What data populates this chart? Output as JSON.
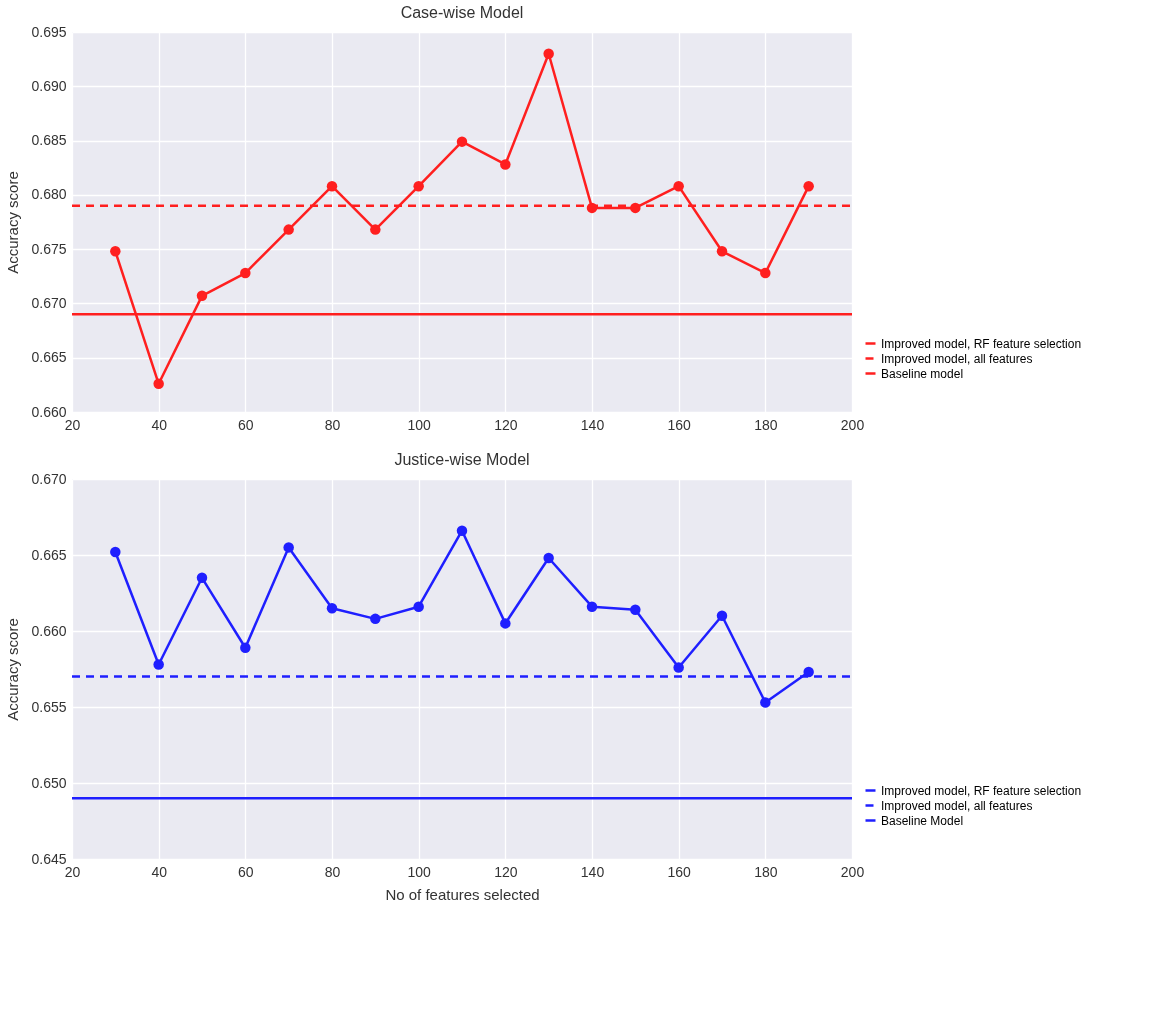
{
  "chart_data": [
    {
      "type": "line",
      "title": "Case-wise Model",
      "ylabel": "Accuracy score",
      "xlim": [
        20,
        200
      ],
      "xticks": [
        20,
        40,
        60,
        80,
        100,
        120,
        140,
        160,
        180,
        200
      ],
      "ylim": [
        0.66,
        0.695
      ],
      "yticks": [
        {
          "value": 0.66,
          "label": "0.660"
        },
        0.665,
        {
          "value": 0.67,
          "label": "0.670"
        },
        0.675,
        {
          "value": 0.68,
          "label": "0.680"
        },
        0.685,
        {
          "value": 0.69,
          "label": "0.690"
        },
        0.695
      ],
      "grid": true,
      "legend": "bottom right",
      "series": [
        {
          "name": "Improved model, RF feature selection",
          "color": "#ff1f1f",
          "marker": "circle",
          "line_style": "solid",
          "x": [
            30,
            40,
            50,
            60,
            70,
            80,
            90,
            100,
            110,
            120,
            130,
            140,
            150,
            160,
            170,
            180,
            190
          ],
          "values": [
            0.6748,
            0.6626,
            0.6707,
            0.6728,
            0.6768,
            0.6808,
            0.6768,
            0.6808,
            0.6849,
            0.6828,
            0.693,
            0.6788,
            0.6788,
            0.6808,
            0.6748,
            0.6728,
            0.6808
          ]
        },
        {
          "name": "Improved model, all features",
          "color": "#ff1f1f",
          "marker": "none",
          "line_style": "dashed",
          "x": [
            20,
            200
          ],
          "values": [
            0.679,
            0.679
          ]
        },
        {
          "name": "Baseline model",
          "color": "#ff1f1f",
          "marker": "none",
          "line_style": "solid",
          "x": [
            20,
            200
          ],
          "values": [
            0.669,
            0.669
          ]
        }
      ]
    },
    {
      "type": "line",
      "title": "Justice-wise Model",
      "xlabel": "No of features selected",
      "ylabel": "Accuracy score",
      "xlim": [
        20,
        200
      ],
      "xticks": [
        20,
        40,
        60,
        80,
        100,
        120,
        140,
        160,
        180,
        200
      ],
      "ylim": [
        0.645,
        0.67
      ],
      "yticks": [
        0.645,
        {
          "value": 0.65,
          "label": "0.650"
        },
        0.655,
        {
          "value": 0.66,
          "label": "0.660"
        },
        0.665,
        {
          "value": 0.67,
          "label": "0.670"
        }
      ],
      "grid": true,
      "legend": "bottom right",
      "series": [
        {
          "name": "Improved model, RF feature selection",
          "color": "#1f1fff",
          "marker": "circle",
          "line_style": "solid",
          "x": [
            30,
            40,
            50,
            60,
            70,
            80,
            90,
            100,
            110,
            120,
            130,
            140,
            150,
            160,
            170,
            180,
            190
          ],
          "values": [
            0.6652,
            0.6578,
            0.6635,
            0.6589,
            0.6655,
            0.6615,
            0.6608,
            0.6616,
            0.6666,
            0.6605,
            0.6648,
            0.6616,
            0.6614,
            0.6576,
            0.661,
            0.6553,
            0.6573
          ]
        },
        {
          "name": "Improved model, all features",
          "color": "#1f1fff",
          "marker": "none",
          "line_style": "dashed",
          "x": [
            20,
            200
          ],
          "values": [
            0.657,
            0.657
          ]
        },
        {
          "name": "Baseline Model",
          "color": "#1f1fff",
          "marker": "none",
          "line_style": "solid",
          "x": [
            20,
            200
          ],
          "values": [
            0.649,
            0.649
          ]
        }
      ]
    }
  ]
}
